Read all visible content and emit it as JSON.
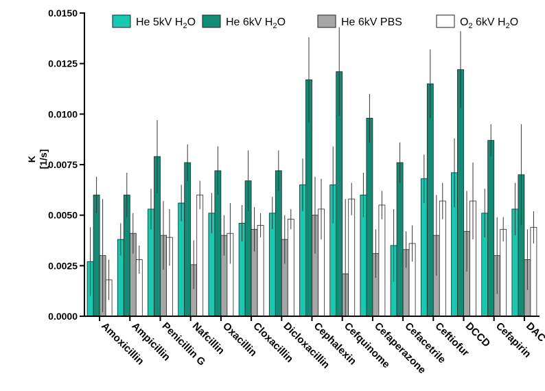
{
  "chart_data": {
    "type": "bar",
    "title": "",
    "ylabel_line1": "K",
    "ylabel_line2": "[1/s]",
    "xlabel": "",
    "ylim": [
      0,
      0.015
    ],
    "yticks": [
      "0.0000",
      "0.0025",
      "0.0050",
      "0.0075",
      "0.0100",
      "0.0125",
      "0.0150"
    ],
    "legend_position": "top",
    "grid": false,
    "categories": [
      "Amoxicillin",
      "Ampicillin",
      "Penicillin G",
      "Nafcillin",
      "Oxacillin",
      "Cloxacillin",
      "Dicloxacillin",
      "Cephalexin",
      "Cefquinome",
      "Cefaperazone",
      "Cefacetrile",
      "Ceftiofur",
      "DCCD",
      "Cefapirin",
      "DAC"
    ],
    "series": [
      {
        "name": "He 5kV H2O",
        "legend_main": "He 5kV H",
        "legend_sub": "2",
        "legend_tail": "O",
        "color": "#17c9b1",
        "values": [
          0.0027,
          0.0038,
          0.0053,
          0.0056,
          0.0051,
          0.0046,
          0.0051,
          0.0065,
          0.0065,
          0.006,
          0.0035,
          0.0068,
          0.0071,
          0.0051,
          0.0053
        ],
        "errors": [
          0.0017,
          0.0008,
          0.001,
          0.0009,
          0.001,
          0.0009,
          0.0008,
          0.0013,
          0.0019,
          0.0011,
          0.0018,
          0.0012,
          0.0017,
          0.0012,
          0.0013
        ]
      },
      {
        "name": "He 6kV H2O",
        "legend_main": "He 6kV H",
        "legend_sub": "2",
        "legend_tail": "O",
        "color": "#128c74",
        "values": [
          0.006,
          0.006,
          0.0079,
          0.0076,
          0.0072,
          0.0067,
          0.0072,
          0.0117,
          0.0121,
          0.0098,
          0.0076,
          0.0115,
          0.0122,
          0.0087,
          0.007
        ],
        "errors": [
          0.0009,
          0.0011,
          0.0018,
          0.0009,
          0.0012,
          0.0015,
          0.001,
          0.0021,
          0.0022,
          0.0012,
          0.001,
          0.0017,
          0.0019,
          0.0008,
          0.0025
        ]
      },
      {
        "name": "He 6kV PBS",
        "legend_main": "He 6kV PBS",
        "legend_sub": "",
        "legend_tail": "",
        "color": "#a6a6a6",
        "values": [
          0.003,
          0.0041,
          0.004,
          0.00255,
          0.004,
          0.0043,
          0.0038,
          0.005,
          0.0021,
          0.0031,
          0.0033,
          0.004,
          0.0042,
          0.003,
          0.0028
        ],
        "errors": [
          0.0028,
          0.001,
          0.0017,
          0.0012,
          0.001,
          0.0011,
          0.0012,
          0.0019,
          0.0037,
          0.0012,
          0.0009,
          0.002,
          0.002,
          0.0019,
          0.0015
        ]
      },
      {
        "name": "O2 6kV H2O",
        "legend_main": "O",
        "legend_sub": "2",
        "legend_tail": " 6kV H",
        "legend_sub2": "2",
        "legend_tail2": "O",
        "color": "#ffffff",
        "values": [
          0.0018,
          0.0028,
          0.0039,
          0.006,
          0.0041,
          0.0045,
          0.0048,
          0.0053,
          0.0058,
          0.0055,
          0.0036,
          0.0057,
          0.0057,
          0.0043,
          0.0044
        ],
        "errors": [
          0.001,
          0.0007,
          0.0014,
          0.0007,
          0.0015,
          0.0006,
          0.0005,
          0.0015,
          0.0008,
          0.0007,
          0.0009,
          0.0009,
          0.0019,
          0.0006,
          0.0008
        ]
      }
    ]
  }
}
